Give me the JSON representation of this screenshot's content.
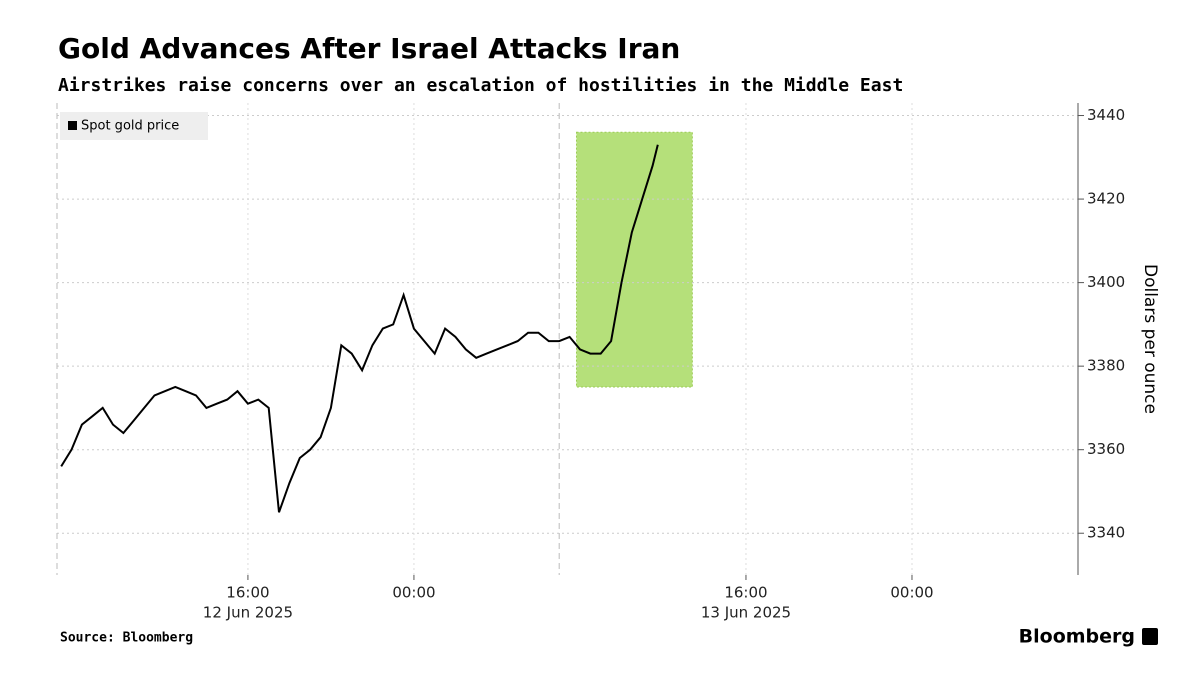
{
  "chart_data": {
    "type": "line",
    "title": "Gold Advances After Israel Attacks Iran",
    "subtitle": "Airstrikes raise concerns over an escalation of hostilities in the Middle East",
    "y_axis_label": "Dollars per ounce",
    "source": "Source: Bloomberg",
    "brand": "Bloomberg",
    "ylim": [
      3330,
      3443
    ],
    "yticks": [
      3340,
      3360,
      3380,
      3400,
      3420,
      3440
    ],
    "xlim": [
      "2025-06-12T06:48",
      "2025-06-14T08:00"
    ],
    "xticks": [
      {
        "value": "2025-06-12T16:00",
        "label": "16:00"
      },
      {
        "value": "2025-06-13T00:00",
        "label": "00:00"
      },
      {
        "value": "2025-06-13T16:00",
        "label": "16:00"
      },
      {
        "value": "2025-06-14T00:00",
        "label": "00:00"
      }
    ],
    "date_labels": [
      {
        "value": "2025-06-12T16:00",
        "label": "12 Jun 2025"
      },
      {
        "value": "2025-06-13T16:00",
        "label": "13 Jun 2025"
      }
    ],
    "session_lines": [
      "2025-06-12T06:48",
      "2025-06-13T07:00"
    ],
    "grid": true,
    "legend": "top-left",
    "highlight": {
      "x": [
        "2025-06-13T07:50",
        "2025-06-13T13:25"
      ],
      "y": [
        3375,
        3436
      ],
      "color": "#b5e07a"
    },
    "x": [
      "2025-06-12T07:00",
      "2025-06-12T07:30",
      "2025-06-12T08:00",
      "2025-06-12T08:30",
      "2025-06-12T09:00",
      "2025-06-12T09:30",
      "2025-06-12T10:00",
      "2025-06-12T10:30",
      "2025-06-12T11:00",
      "2025-06-12T11:30",
      "2025-06-12T12:00",
      "2025-06-12T12:30",
      "2025-06-12T13:00",
      "2025-06-12T13:30",
      "2025-06-12T14:00",
      "2025-06-12T14:30",
      "2025-06-12T15:00",
      "2025-06-12T15:30",
      "2025-06-12T16:00",
      "2025-06-12T16:30",
      "2025-06-12T17:00",
      "2025-06-12T17:30",
      "2025-06-12T18:00",
      "2025-06-12T18:30",
      "2025-06-12T19:00",
      "2025-06-12T19:30",
      "2025-06-12T20:00",
      "2025-06-12T20:30",
      "2025-06-12T21:00",
      "2025-06-12T21:30",
      "2025-06-12T22:00",
      "2025-06-12T22:30",
      "2025-06-12T23:00",
      "2025-06-12T23:30",
      "2025-06-13T00:00",
      "2025-06-13T00:30",
      "2025-06-13T01:00",
      "2025-06-13T01:30",
      "2025-06-13T02:00",
      "2025-06-13T02:30",
      "2025-06-13T03:00",
      "2025-06-13T03:30",
      "2025-06-13T04:00",
      "2025-06-13T04:30",
      "2025-06-13T05:00",
      "2025-06-13T05:30",
      "2025-06-13T06:00",
      "2025-06-13T06:30",
      "2025-06-13T07:00",
      "2025-06-13T07:30",
      "2025-06-13T08:00",
      "2025-06-13T08:30",
      "2025-06-13T09:00",
      "2025-06-13T09:30",
      "2025-06-13T10:00",
      "2025-06-13T10:30",
      "2025-06-13T11:00",
      "2025-06-13T11:30",
      "2025-06-13T11:45"
    ],
    "series": [
      {
        "name": "Spot gold price",
        "color": "#000000",
        "values": [
          3356,
          3360,
          3366,
          3368,
          3370,
          3366,
          3364,
          3367,
          3370,
          3373,
          3374,
          3375,
          3374,
          3373,
          3370,
          3371,
          3372,
          3374,
          3371,
          3372,
          3370,
          3345,
          3352,
          3358,
          3360,
          3363,
          3370,
          3385,
          3383,
          3379,
          3385,
          3389,
          3390,
          3397,
          3389,
          3386,
          3383,
          3389,
          3387,
          3384,
          3382,
          3383,
          3384,
          3385,
          3386,
          3388,
          3388,
          3386,
          3386,
          3387,
          3384,
          3383,
          3383,
          3386,
          3400,
          3412,
          3420,
          3428,
          3433
        ]
      }
    ]
  }
}
